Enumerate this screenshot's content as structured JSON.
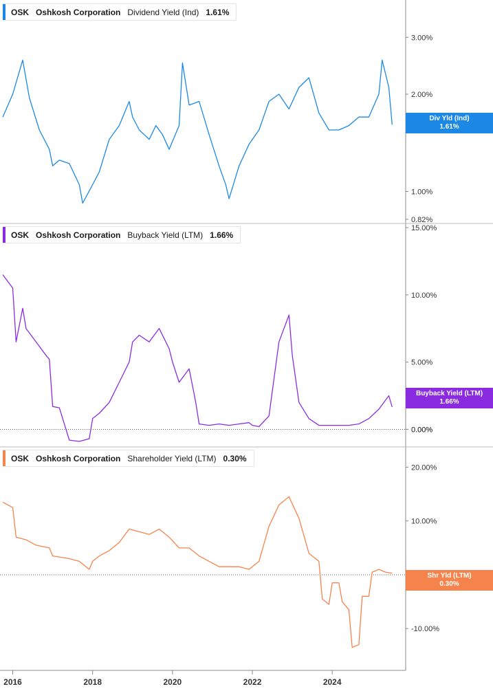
{
  "ticker": "OSK",
  "company": "Oshkosh Corporation",
  "panels": [
    {
      "metric": "Dividend Yield (Ind)",
      "current": "1.61%",
      "badge_title": "Div Yld (Ind)",
      "badge_value": "1.61%",
      "color": "#1b88e6"
    },
    {
      "metric": "Buyback Yield (LTM)",
      "current": "1.66%",
      "badge_title": "Buyback Yield (LTM)",
      "badge_value": "1.66%",
      "color": "#8a2be2"
    },
    {
      "metric": "Shareholder Yield (LTM)",
      "current": "0.30%",
      "badge_title": "Shr Yld (LTM)",
      "badge_value": "0.30%",
      "color": "#f5834c"
    }
  ],
  "chart_data": [
    {
      "type": "line",
      "series_name": "Dividend Yield (Ind)",
      "scale": "log",
      "ylim": [
        0.82,
        3.8
      ],
      "yticks": [
        "3.00%",
        "2.00%",
        "1.00%",
        "0.82%"
      ],
      "ytick_values": [
        3.0,
        2.0,
        1.0,
        0.82
      ],
      "x": [
        "2015-10",
        "2016-01",
        "2016-04",
        "2016-06",
        "2016-09",
        "2016-12",
        "2017-01",
        "2017-03",
        "2017-06",
        "2017-09",
        "2017-10",
        "2018-01",
        "2018-03",
        "2018-06",
        "2018-09",
        "2018-12",
        "2019-01",
        "2019-03",
        "2019-06",
        "2019-08",
        "2019-10",
        "2019-12",
        "2020-03",
        "2020-04",
        "2020-06",
        "2020-09",
        "2020-12",
        "2021-03",
        "2021-05",
        "2021-06",
        "2021-09",
        "2021-12",
        "2022-03",
        "2022-06",
        "2022-09",
        "2022-12",
        "2023-03",
        "2023-06",
        "2023-09",
        "2023-12",
        "2024-03",
        "2024-06",
        "2024-09",
        "2024-12",
        "2025-03",
        "2025-04",
        "2025-06",
        "2025-07"
      ],
      "values": [
        1.7,
        2.0,
        2.55,
        1.95,
        1.55,
        1.35,
        1.2,
        1.25,
        1.22,
        1.05,
        0.92,
        1.05,
        1.15,
        1.45,
        1.6,
        1.9,
        1.7,
        1.55,
        1.45,
        1.6,
        1.5,
        1.35,
        1.6,
        2.5,
        1.85,
        1.9,
        1.5,
        1.2,
        1.05,
        0.95,
        1.2,
        1.4,
        1.55,
        1.9,
        2.0,
        1.8,
        2.1,
        2.25,
        1.75,
        1.55,
        1.55,
        1.6,
        1.7,
        1.7,
        2.0,
        2.55,
        2.1,
        1.61
      ]
    },
    {
      "type": "line",
      "series_name": "Buyback Yield (LTM)",
      "ylim": [
        -1.0,
        15.0
      ],
      "yticks": [
        "15.00%",
        "10.00%",
        "5.00%",
        "0.00%"
      ],
      "ytick_values": [
        15.0,
        10.0,
        5.0,
        0.0
      ],
      "x": [
        "2015-10",
        "2016-01",
        "2016-02",
        "2016-04",
        "2016-05",
        "2016-08",
        "2016-11",
        "2016-12",
        "2017-01",
        "2017-03",
        "2017-06",
        "2017-09",
        "2017-12",
        "2018-01",
        "2018-03",
        "2018-06",
        "2018-09",
        "2018-12",
        "2019-01",
        "2019-03",
        "2019-06",
        "2019-09",
        "2019-12",
        "2020-01",
        "2020-03",
        "2020-06",
        "2020-08",
        "2020-09",
        "2020-12",
        "2021-03",
        "2021-06",
        "2021-09",
        "2021-12",
        "2022-01",
        "2022-03",
        "2022-06",
        "2022-09",
        "2022-12",
        "2023-01",
        "2023-03",
        "2023-06",
        "2023-09",
        "2023-12",
        "2024-03",
        "2024-06",
        "2024-09",
        "2024-12",
        "2025-03",
        "2025-06",
        "2025-07"
      ],
      "values": [
        11.5,
        10.5,
        6.5,
        9.0,
        7.5,
        6.5,
        5.5,
        5.2,
        1.7,
        1.6,
        -0.8,
        -0.9,
        -0.7,
        0.8,
        1.2,
        2.0,
        3.5,
        5.0,
        6.5,
        7.0,
        6.5,
        7.5,
        6.0,
        5.0,
        3.5,
        4.5,
        2.0,
        0.4,
        0.3,
        0.4,
        0.3,
        0.4,
        0.5,
        0.3,
        0.2,
        1.0,
        6.5,
        8.5,
        5.5,
        2.0,
        0.8,
        0.3,
        0.3,
        0.3,
        0.3,
        0.4,
        0.8,
        1.5,
        2.5,
        1.66
      ]
    },
    {
      "type": "line",
      "series_name": "Shareholder Yield (LTM)",
      "ylim": [
        -17.0,
        23.0
      ],
      "yticks": [
        "20.00%",
        "10.00%",
        "-10.00%"
      ],
      "ytick_values": [
        20.0,
        10.0,
        -10.0
      ],
      "x": [
        "2015-10",
        "2016-01",
        "2016-02",
        "2016-05",
        "2016-08",
        "2016-12",
        "2017-01",
        "2017-06",
        "2017-09",
        "2017-12",
        "2018-01",
        "2018-03",
        "2018-06",
        "2018-09",
        "2018-12",
        "2019-03",
        "2019-06",
        "2019-09",
        "2019-12",
        "2020-03",
        "2020-06",
        "2020-09",
        "2020-12",
        "2021-03",
        "2021-06",
        "2021-09",
        "2021-12",
        "2022-01",
        "2022-03",
        "2022-06",
        "2022-09",
        "2022-12",
        "2023-03",
        "2023-06",
        "2023-09",
        "2023-10",
        "2023-12",
        "2024-01",
        "2024-03",
        "2024-04",
        "2024-06",
        "2024-07",
        "2024-09",
        "2024-10",
        "2024-12",
        "2025-01",
        "2025-03",
        "2025-05",
        "2025-07"
      ],
      "values": [
        13.5,
        12.5,
        7.0,
        6.5,
        5.5,
        5.0,
        3.5,
        3.0,
        2.5,
        1.0,
        2.5,
        3.5,
        4.5,
        6.0,
        8.5,
        8.0,
        7.5,
        8.5,
        7.0,
        5.0,
        5.0,
        3.5,
        2.5,
        1.5,
        1.5,
        1.5,
        1.0,
        1.5,
        2.5,
        9.0,
        13.0,
        14.5,
        10.5,
        4.0,
        2.5,
        -4.5,
        -5.5,
        -1.5,
        -1.5,
        -5.0,
        -6.5,
        -13.5,
        -13.0,
        -4.0,
        -4.0,
        0.5,
        1.0,
        0.5,
        0.3
      ]
    }
  ],
  "x_axis": {
    "ticks": [
      "2016",
      "2018",
      "2020",
      "2022",
      "2024"
    ],
    "tick_dates": [
      "2016-01",
      "2018-01",
      "2020-01",
      "2022-01",
      "2024-01"
    ],
    "range": [
      "2015-10",
      "2025-09"
    ]
  },
  "zero_label": "0.00%"
}
